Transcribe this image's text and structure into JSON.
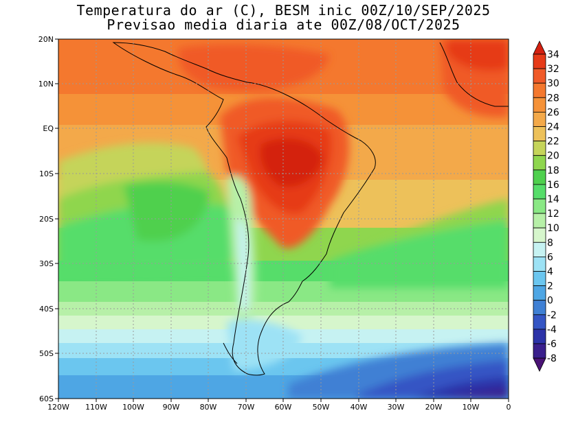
{
  "title_line1": "Temperatura do ar (C), BESM inic 00Z/10/SEP/2025",
  "title_line2": "Previsao media diaria ate 00Z/08/OCT/2025",
  "lat_labels": [
    "20N",
    "10N",
    "EQ",
    "10S",
    "20S",
    "30S",
    "40S",
    "50S",
    "60S"
  ],
  "lon_labels": [
    "120W",
    "110W",
    "100W",
    "90W",
    "80W",
    "70W",
    "60W",
    "50W",
    "40W",
    "30W",
    "20W",
    "10W",
    "0"
  ],
  "colorbar_labels": [
    "34",
    "32",
    "30",
    "28",
    "26",
    "24",
    "22",
    "20",
    "18",
    "16",
    "14",
    "12",
    "10",
    "8",
    "6",
    "4",
    "2",
    "0",
    "-2",
    "-4",
    "-6",
    "-8"
  ],
  "colorbar_colors": [
    "#d42010",
    "#e63a18",
    "#f05a28",
    "#f4782e",
    "#f59238",
    "#f3a94a",
    "#edc15a",
    "#c5d45a",
    "#8fd64e",
    "#4fd04e",
    "#56dd6a",
    "#8ae885",
    "#b7f0a8",
    "#d6f6cc",
    "#c6f2f2",
    "#9de2f5",
    "#6bc6ef",
    "#4ea6e4",
    "#3f80d4",
    "#3455c4",
    "#2c33a8",
    "#3a1f8c",
    "#4a1275"
  ]
}
